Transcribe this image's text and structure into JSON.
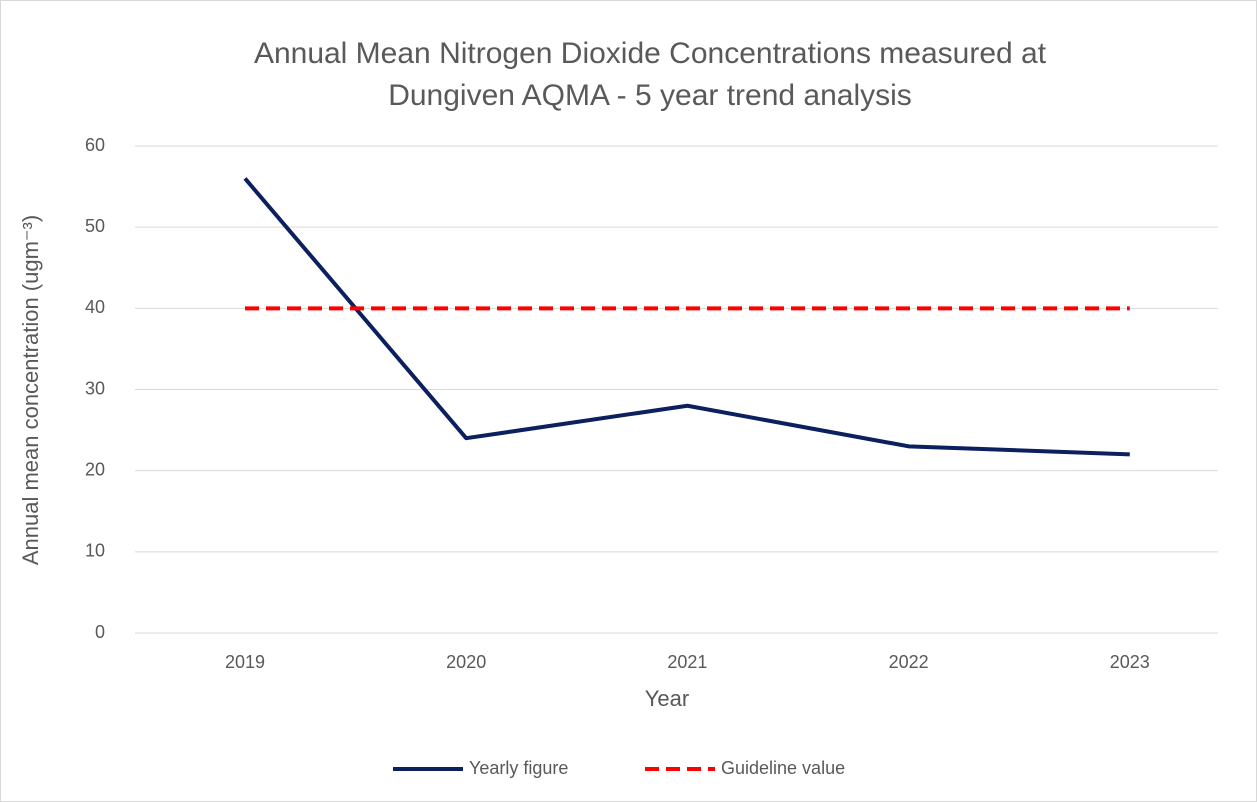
{
  "chart_data": {
    "type": "line",
    "title": [
      "Annual Mean Nitrogen Dioxide Concentrations measured at",
      "Dungiven AQMA - 5 year trend analysis"
    ],
    "x_label": "Year",
    "y_label": "Annual mean concentration (ugm⁻³)",
    "categories": [
      "2019",
      "2020",
      "2021",
      "2022",
      "2023"
    ],
    "series": [
      {
        "name": "Yearly figure",
        "color": "#0c1f5e",
        "dash": false,
        "values": [
          56,
          24,
          28,
          23,
          22
        ]
      },
      {
        "name": "Guideline value",
        "color": "#ff0000",
        "dash": true,
        "values": [
          40,
          40,
          40,
          40,
          40
        ]
      }
    ],
    "ylim": [
      0,
      60
    ],
    "yticks": [
      0,
      10,
      20,
      30,
      40,
      50,
      60
    ],
    "grid": true,
    "legend": "bottom"
  }
}
